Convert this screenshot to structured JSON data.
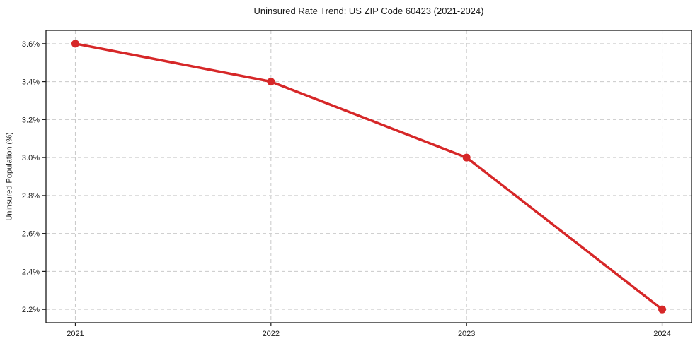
{
  "chart_data": {
    "type": "line",
    "title": "Uninsured Rate Trend: US ZIP Code 60423 (2021-2024)",
    "xlabel": "",
    "ylabel": "Uninsured Population (%)",
    "categories": [
      "2021",
      "2022",
      "2023",
      "2024"
    ],
    "x": [
      2021,
      2022,
      2023,
      2024
    ],
    "series": [
      {
        "name": "Uninsured Rate",
        "values": [
          3.6,
          3.4,
          3.0,
          2.2
        ],
        "color": "#d62728",
        "marker": "circle",
        "line_width": 3.5,
        "marker_radius": 5.5
      }
    ],
    "x_tick_labels": [
      "2021",
      "2022",
      "2023",
      "2024"
    ],
    "y_ticks": [
      2.2,
      2.4,
      2.6,
      2.8,
      3.0,
      3.2,
      3.4,
      3.6
    ],
    "y_tick_labels": [
      "2.2%",
      "2.4%",
      "2.6%",
      "2.8%",
      "3.0%",
      "3.2%",
      "3.4%",
      "3.6%"
    ],
    "xlim": [
      2020.85,
      2024.15
    ],
    "ylim": [
      2.13,
      3.67
    ],
    "grid": true,
    "grid_color": "#c9c9c9",
    "grid_dash": "5 4",
    "axis_color": "#1a1a1a",
    "background": "#ffffff",
    "legend": "none"
  }
}
